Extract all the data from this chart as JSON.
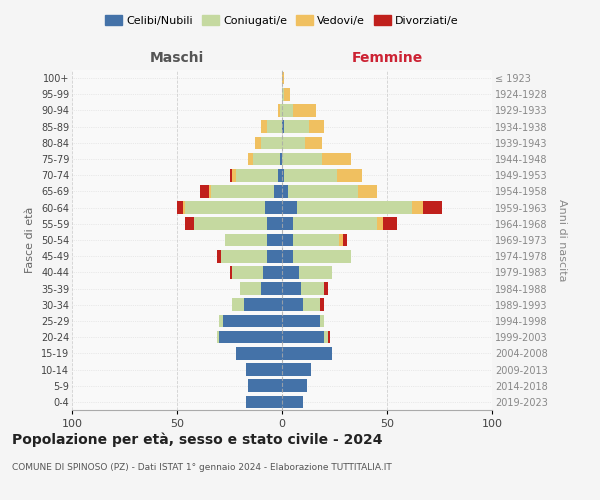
{
  "age_groups": [
    "0-4",
    "5-9",
    "10-14",
    "15-19",
    "20-24",
    "25-29",
    "30-34",
    "35-39",
    "40-44",
    "45-49",
    "50-54",
    "55-59",
    "60-64",
    "65-69",
    "70-74",
    "75-79",
    "80-84",
    "85-89",
    "90-94",
    "95-99",
    "100+"
  ],
  "birth_years": [
    "2019-2023",
    "2014-2018",
    "2009-2013",
    "2004-2008",
    "1999-2003",
    "1994-1998",
    "1989-1993",
    "1984-1988",
    "1979-1983",
    "1974-1978",
    "1969-1973",
    "1964-1968",
    "1959-1963",
    "1954-1958",
    "1949-1953",
    "1944-1948",
    "1939-1943",
    "1934-1938",
    "1929-1933",
    "1924-1928",
    "≤ 1923"
  ],
  "colors": {
    "celibi": "#4472a8",
    "coniugati": "#c5d9a0",
    "vedovi": "#f0c060",
    "divorziati": "#c0201c"
  },
  "maschi": {
    "celibi": [
      17,
      16,
      17,
      22,
      30,
      28,
      18,
      10,
      9,
      7,
      7,
      7,
      8,
      4,
      2,
      1,
      0,
      0,
      0,
      0,
      0
    ],
    "coniugati": [
      0,
      0,
      0,
      0,
      1,
      2,
      6,
      10,
      15,
      22,
      20,
      35,
      38,
      30,
      20,
      13,
      10,
      7,
      1,
      0,
      0
    ],
    "vedovi": [
      0,
      0,
      0,
      0,
      0,
      0,
      0,
      0,
      0,
      0,
      0,
      0,
      1,
      1,
      2,
      2,
      3,
      3,
      1,
      0,
      0
    ],
    "divorziati": [
      0,
      0,
      0,
      0,
      0,
      0,
      0,
      0,
      1,
      2,
      0,
      4,
      3,
      4,
      1,
      0,
      0,
      0,
      0,
      0,
      0
    ]
  },
  "femmine": {
    "celibi": [
      10,
      12,
      14,
      24,
      20,
      18,
      10,
      9,
      8,
      5,
      5,
      5,
      7,
      3,
      1,
      0,
      0,
      1,
      0,
      0,
      0
    ],
    "coniugati": [
      0,
      0,
      0,
      0,
      2,
      2,
      8,
      11,
      16,
      28,
      22,
      40,
      55,
      33,
      25,
      19,
      11,
      12,
      5,
      1,
      0
    ],
    "vedovi": [
      0,
      0,
      0,
      0,
      0,
      0,
      0,
      0,
      0,
      0,
      2,
      3,
      5,
      9,
      12,
      14,
      8,
      7,
      11,
      3,
      1
    ],
    "divorziati": [
      0,
      0,
      0,
      0,
      1,
      0,
      2,
      2,
      0,
      0,
      2,
      7,
      9,
      0,
      0,
      0,
      0,
      0,
      0,
      0,
      0
    ]
  },
  "title": "Popolazione per età, sesso e stato civile - 2024",
  "subtitle": "COMUNE DI SPINOSO (PZ) - Dati ISTAT 1° gennaio 2024 - Elaborazione TUTTITALIA.IT",
  "xlabel_left": "Maschi",
  "xlabel_right": "Femmine",
  "ylabel_left": "Fasce di età",
  "ylabel_right": "Anni di nascita",
  "xlim": 100,
  "legend_labels": [
    "Celibi/Nubili",
    "Coniugati/e",
    "Vedovi/e",
    "Divorziati/e"
  ],
  "bg_color": "#f5f5f5",
  "plot_bg": "#f9f9f9"
}
